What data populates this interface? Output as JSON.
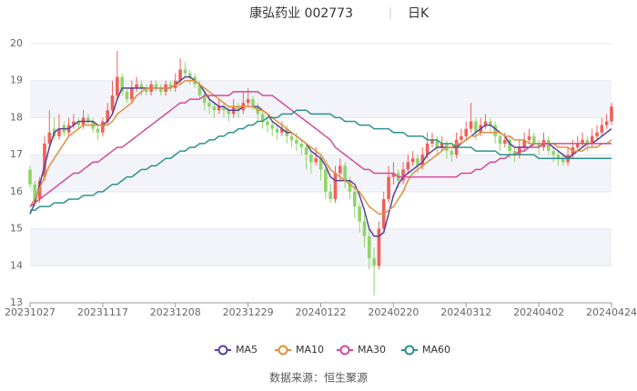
{
  "chart_data": {
    "type": "candlestick",
    "title": "康弘药业 002773",
    "period": "日K",
    "source": "数据来源：恒生聚源",
    "up_color": "#f0605a",
    "down_color": "#8fd46b",
    "grid": true,
    "banded": true,
    "ylim": [
      13,
      20
    ],
    "yticks": [
      13,
      14,
      15,
      16,
      17,
      18,
      19,
      20
    ],
    "categories": [
      "20231027",
      null,
      null,
      null,
      null,
      null,
      null,
      null,
      null,
      null,
      null,
      null,
      null,
      null,
      null,
      "20231117",
      null,
      null,
      null,
      null,
      null,
      null,
      null,
      null,
      null,
      null,
      null,
      null,
      null,
      null,
      "20231208",
      null,
      null,
      null,
      null,
      null,
      null,
      null,
      null,
      null,
      null,
      null,
      null,
      null,
      null,
      "20231229",
      null,
      null,
      null,
      null,
      null,
      null,
      null,
      null,
      null,
      null,
      null,
      null,
      null,
      null,
      "20240122",
      null,
      null,
      null,
      null,
      null,
      null,
      null,
      null,
      null,
      null,
      null,
      null,
      null,
      null,
      "20240220",
      null,
      null,
      null,
      null,
      null,
      null,
      null,
      null,
      null,
      null,
      null,
      null,
      null,
      null,
      "20240312",
      null,
      null,
      null,
      null,
      null,
      null,
      null,
      null,
      null,
      null,
      null,
      null,
      null,
      null,
      "20240402",
      null,
      null,
      null,
      null,
      null,
      null,
      null,
      null,
      null,
      null,
      null,
      null,
      null,
      null,
      "20240424"
    ],
    "ohlc": [
      [
        16.6,
        16.7,
        16.1,
        16.2
      ],
      [
        16.2,
        16.3,
        15.6,
        15.7
      ],
      [
        15.8,
        16.4,
        15.7,
        16.3
      ],
      [
        16.4,
        17.5,
        16.3,
        17.3
      ],
      [
        17.3,
        18.2,
        17.2,
        17.6
      ],
      [
        17.7,
        18.0,
        17.4,
        17.5
      ],
      [
        17.5,
        18.1,
        17.4,
        17.7
      ],
      [
        17.8,
        17.9,
        17.5,
        17.6
      ],
      [
        17.6,
        18.0,
        17.5,
        17.8
      ],
      [
        17.8,
        18.1,
        17.7,
        17.9
      ],
      [
        17.9,
        18.0,
        17.7,
        17.8
      ],
      [
        17.8,
        18.2,
        17.7,
        18.0
      ],
      [
        18.0,
        18.1,
        17.8,
        17.9
      ],
      [
        17.9,
        18.0,
        17.6,
        17.7
      ],
      [
        17.7,
        17.8,
        17.4,
        17.6
      ],
      [
        17.6,
        18.0,
        17.5,
        17.9
      ],
      [
        17.9,
        18.4,
        17.8,
        18.2
      ],
      [
        18.2,
        19.0,
        18.1,
        18.6
      ],
      [
        18.6,
        19.8,
        18.5,
        19.1
      ],
      [
        19.1,
        19.2,
        18.6,
        18.7
      ],
      [
        18.7,
        18.8,
        18.4,
        18.5
      ],
      [
        18.5,
        19.0,
        18.4,
        18.8
      ],
      [
        18.8,
        19.1,
        18.7,
        18.9
      ],
      [
        18.9,
        19.0,
        18.6,
        18.8
      ],
      [
        18.8,
        18.9,
        18.6,
        18.7
      ],
      [
        18.7,
        19.0,
        18.6,
        18.9
      ],
      [
        18.9,
        19.0,
        18.7,
        18.8
      ],
      [
        18.8,
        18.9,
        18.6,
        18.7
      ],
      [
        18.7,
        19.0,
        18.6,
        18.9
      ],
      [
        18.9,
        19.0,
        18.7,
        18.8
      ],
      [
        18.8,
        19.2,
        18.7,
        19.0
      ],
      [
        19.0,
        19.6,
        18.9,
        19.3
      ],
      [
        19.3,
        19.5,
        19.1,
        19.2
      ],
      [
        19.2,
        19.3,
        18.9,
        19.1
      ],
      [
        19.1,
        19.2,
        18.8,
        18.9
      ],
      [
        18.9,
        19.0,
        18.5,
        18.6
      ],
      [
        18.6,
        18.7,
        18.2,
        18.4
      ],
      [
        18.4,
        18.6,
        18.1,
        18.3
      ],
      [
        18.3,
        18.4,
        18.0,
        18.2
      ],
      [
        18.2,
        18.5,
        18.1,
        18.3
      ],
      [
        18.3,
        18.4,
        18.0,
        18.2
      ],
      [
        18.2,
        18.3,
        17.9,
        18.1
      ],
      [
        18.1,
        18.5,
        18.0,
        18.3
      ],
      [
        18.3,
        18.4,
        18.0,
        18.2
      ],
      [
        18.2,
        18.7,
        18.1,
        18.4
      ],
      [
        18.4,
        18.8,
        18.3,
        18.5
      ],
      [
        18.5,
        18.6,
        18.2,
        18.3
      ],
      [
        18.3,
        18.4,
        17.9,
        18.1
      ],
      [
        18.1,
        18.2,
        17.7,
        17.9
      ],
      [
        17.9,
        18.0,
        17.6,
        17.8
      ],
      [
        17.8,
        17.9,
        17.5,
        17.7
      ],
      [
        17.7,
        17.8,
        17.4,
        17.6
      ],
      [
        17.6,
        17.9,
        17.5,
        17.7
      ],
      [
        17.7,
        17.8,
        17.3,
        17.5
      ],
      [
        17.5,
        17.6,
        17.2,
        17.4
      ],
      [
        17.4,
        17.6,
        17.1,
        17.3
      ],
      [
        17.3,
        17.4,
        17.0,
        17.2
      ],
      [
        17.2,
        17.3,
        16.6,
        17.0
      ],
      [
        17.0,
        17.1,
        16.5,
        16.8
      ],
      [
        16.8,
        17.2,
        16.7,
        16.9
      ],
      [
        16.9,
        17.0,
        16.3,
        16.6
      ],
      [
        16.6,
        16.7,
        15.8,
        16.0
      ],
      [
        16.0,
        16.2,
        15.7,
        15.8
      ],
      [
        15.8,
        16.7,
        15.7,
        16.5
      ],
      [
        16.5,
        16.9,
        16.3,
        16.7
      ],
      [
        16.7,
        16.8,
        16.1,
        16.3
      ],
      [
        16.3,
        16.4,
        15.8,
        16.0
      ],
      [
        16.0,
        16.1,
        15.3,
        15.6
      ],
      [
        15.6,
        15.7,
        14.9,
        15.2
      ],
      [
        15.2,
        15.4,
        14.5,
        14.8
      ],
      [
        14.8,
        15.0,
        13.9,
        14.2
      ],
      [
        14.2,
        14.5,
        13.2,
        14.0
      ],
      [
        14.0,
        15.2,
        13.9,
        15.0
      ],
      [
        15.0,
        16.0,
        14.9,
        15.8
      ],
      [
        15.8,
        16.7,
        15.7,
        16.4
      ],
      [
        16.4,
        16.8,
        16.2,
        16.5
      ],
      [
        16.5,
        16.6,
        16.1,
        16.3
      ],
      [
        16.3,
        16.8,
        16.2,
        16.6
      ],
      [
        16.6,
        17.0,
        16.5,
        16.8
      ],
      [
        16.8,
        17.1,
        16.7,
        16.9
      ],
      [
        16.9,
        17.0,
        16.5,
        16.7
      ],
      [
        16.7,
        17.2,
        16.6,
        17.0
      ],
      [
        17.0,
        17.6,
        16.9,
        17.3
      ],
      [
        17.3,
        17.6,
        17.2,
        17.4
      ],
      [
        17.4,
        17.5,
        17.0,
        17.2
      ],
      [
        17.2,
        17.5,
        17.1,
        17.3
      ],
      [
        17.3,
        17.4,
        16.9,
        17.1
      ],
      [
        17.1,
        17.2,
        16.8,
        17.0
      ],
      [
        17.0,
        17.6,
        16.9,
        17.4
      ],
      [
        17.4,
        17.7,
        17.3,
        17.5
      ],
      [
        17.5,
        17.9,
        17.4,
        17.7
      ],
      [
        17.7,
        18.4,
        17.6,
        17.9
      ],
      [
        17.9,
        18.0,
        17.4,
        17.6
      ],
      [
        17.6,
        18.0,
        17.5,
        17.8
      ],
      [
        17.8,
        18.1,
        17.7,
        17.9
      ],
      [
        17.9,
        18.0,
        17.6,
        17.8
      ],
      [
        17.8,
        17.9,
        17.3,
        17.5
      ],
      [
        17.5,
        17.6,
        17.1,
        17.3
      ],
      [
        17.3,
        17.6,
        17.2,
        17.4
      ],
      [
        17.4,
        17.5,
        16.9,
        17.1
      ],
      [
        17.1,
        17.2,
        16.8,
        17.0
      ],
      [
        17.0,
        17.4,
        16.9,
        17.2
      ],
      [
        17.2,
        17.6,
        17.1,
        17.4
      ],
      [
        17.4,
        17.7,
        17.3,
        17.5
      ],
      [
        17.5,
        17.6,
        17.2,
        17.3
      ],
      [
        17.3,
        17.4,
        17.0,
        17.2
      ],
      [
        17.2,
        17.6,
        17.1,
        17.4
      ],
      [
        17.4,
        17.5,
        17.0,
        17.1
      ],
      [
        17.1,
        17.2,
        16.8,
        17.0
      ],
      [
        17.0,
        17.1,
        16.7,
        16.9
      ],
      [
        16.9,
        17.0,
        16.7,
        16.8
      ],
      [
        16.8,
        17.2,
        16.7,
        17.0
      ],
      [
        17.0,
        17.4,
        16.9,
        17.2
      ],
      [
        17.2,
        17.5,
        17.1,
        17.3
      ],
      [
        17.3,
        17.6,
        17.2,
        17.4
      ],
      [
        17.4,
        17.5,
        17.1,
        17.3
      ],
      [
        17.3,
        17.7,
        17.2,
        17.5
      ],
      [
        17.5,
        17.8,
        17.4,
        17.6
      ],
      [
        17.6,
        18.0,
        17.5,
        17.8
      ],
      [
        17.8,
        18.1,
        17.7,
        17.9
      ],
      [
        17.9,
        18.4,
        17.8,
        18.3
      ]
    ],
    "series": [
      {
        "name": "MA5",
        "color": "#5a3f9c",
        "values": [
          15.4,
          15.7,
          16.2,
          16.7,
          17.2,
          17.6,
          17.7,
          17.7,
          17.7,
          17.8,
          17.9,
          17.9,
          17.9,
          17.9,
          17.8,
          17.8,
          17.9,
          18.1,
          18.5,
          18.8,
          18.8,
          18.8,
          18.8,
          18.8,
          18.8,
          18.8,
          18.8,
          18.8,
          18.8,
          18.8,
          18.9,
          19.0,
          19.1,
          19.1,
          19.0,
          18.9,
          18.7,
          18.5,
          18.4,
          18.3,
          18.3,
          18.2,
          18.2,
          18.2,
          18.3,
          18.3,
          18.3,
          18.3,
          18.2,
          18.1,
          17.9,
          17.8,
          17.7,
          17.6,
          17.6,
          17.5,
          17.4,
          17.3,
          17.1,
          17.0,
          16.9,
          16.7,
          16.4,
          16.3,
          16.3,
          16.3,
          16.3,
          16.2,
          15.9,
          15.5,
          15.0,
          14.8,
          14.8,
          14.9,
          15.4,
          15.9,
          16.2,
          16.4,
          16.5,
          16.6,
          16.7,
          16.8,
          17.0,
          17.1,
          17.2,
          17.2,
          17.2,
          17.2,
          17.2,
          17.3,
          17.4,
          17.5,
          17.6,
          17.7,
          17.8,
          17.8,
          17.7,
          17.6,
          17.5,
          17.3,
          17.2,
          17.2,
          17.2,
          17.2,
          17.3,
          17.3,
          17.3,
          17.3,
          17.2,
          17.1,
          17.0,
          16.9,
          17.0,
          17.1,
          17.2,
          17.3,
          17.3,
          17.4,
          17.5,
          17.6,
          17.7
        ]
      },
      {
        "name": "MA10",
        "color": "#e0913a",
        "values": [
          15.6,
          15.8,
          16.1,
          16.4,
          16.7,
          16.9,
          17.1,
          17.3,
          17.5,
          17.6,
          17.7,
          17.8,
          17.8,
          17.8,
          17.8,
          17.8,
          17.8,
          17.9,
          18.1,
          18.2,
          18.3,
          18.4,
          18.6,
          18.7,
          18.8,
          18.8,
          18.8,
          18.8,
          18.8,
          18.8,
          18.9,
          18.9,
          19.0,
          19.0,
          19.0,
          18.9,
          18.8,
          18.7,
          18.6,
          18.5,
          18.4,
          18.3,
          18.3,
          18.3,
          18.3,
          18.3,
          18.3,
          18.2,
          18.2,
          18.1,
          18.0,
          17.9,
          17.8,
          17.7,
          17.6,
          17.5,
          17.4,
          17.3,
          17.2,
          17.1,
          17.0,
          16.8,
          16.6,
          16.5,
          16.4,
          16.3,
          16.2,
          16.1,
          16.0,
          15.8,
          15.6,
          15.5,
          15.4,
          15.4,
          15.5,
          15.6,
          15.8,
          16.0,
          16.3,
          16.5,
          16.6,
          16.7,
          16.8,
          16.9,
          17.0,
          17.1,
          17.2,
          17.2,
          17.3,
          17.3,
          17.4,
          17.5,
          17.5,
          17.6,
          17.6,
          17.6,
          17.6,
          17.6,
          17.5,
          17.5,
          17.4,
          17.4,
          17.4,
          17.3,
          17.3,
          17.3,
          17.3,
          17.3,
          17.3,
          17.2,
          17.2,
          17.2,
          17.1,
          17.1,
          17.1,
          17.2,
          17.2,
          17.2,
          17.3,
          17.3,
          17.4
        ]
      },
      {
        "name": "MA30",
        "color": "#d44a98",
        "values": [
          15.6,
          15.7,
          15.8,
          15.9,
          16.0,
          16.1,
          16.2,
          16.3,
          16.4,
          16.5,
          16.5,
          16.6,
          16.7,
          16.8,
          16.8,
          16.9,
          17.0,
          17.1,
          17.2,
          17.2,
          17.3,
          17.4,
          17.5,
          17.6,
          17.7,
          17.8,
          17.9,
          18.0,
          18.1,
          18.2,
          18.3,
          18.4,
          18.4,
          18.5,
          18.5,
          18.5,
          18.6,
          18.6,
          18.6,
          18.6,
          18.6,
          18.6,
          18.7,
          18.7,
          18.7,
          18.7,
          18.7,
          18.7,
          18.6,
          18.6,
          18.6,
          18.5,
          18.4,
          18.3,
          18.2,
          18.1,
          18.0,
          17.9,
          17.8,
          17.7,
          17.6,
          17.5,
          17.4,
          17.2,
          17.1,
          17.0,
          16.9,
          16.8,
          16.7,
          16.6,
          16.6,
          16.5,
          16.5,
          16.5,
          16.5,
          16.5,
          16.4,
          16.4,
          16.4,
          16.4,
          16.4,
          16.4,
          16.4,
          16.4,
          16.4,
          16.4,
          16.4,
          16.4,
          16.4,
          16.5,
          16.5,
          16.5,
          16.6,
          16.6,
          16.7,
          16.8,
          16.8,
          16.9,
          16.9,
          17.0,
          17.0,
          17.1,
          17.1,
          17.2,
          17.2,
          17.2,
          17.3,
          17.3,
          17.3,
          17.3,
          17.3,
          17.3,
          17.3,
          17.3,
          17.3,
          17.3,
          17.3,
          17.3,
          17.3,
          17.3,
          17.3
        ]
      },
      {
        "name": "MA60",
        "color": "#2b928e",
        "values": [
          15.5,
          15.5,
          15.6,
          15.6,
          15.6,
          15.7,
          15.7,
          15.7,
          15.8,
          15.8,
          15.8,
          15.9,
          15.9,
          15.9,
          16.0,
          16.0,
          16.1,
          16.2,
          16.2,
          16.3,
          16.4,
          16.4,
          16.5,
          16.6,
          16.6,
          16.7,
          16.7,
          16.8,
          16.9,
          16.9,
          17.0,
          17.1,
          17.1,
          17.2,
          17.2,
          17.3,
          17.3,
          17.4,
          17.4,
          17.5,
          17.5,
          17.6,
          17.6,
          17.7,
          17.7,
          17.8,
          17.8,
          17.9,
          17.9,
          18.0,
          18.0,
          18.0,
          18.1,
          18.1,
          18.1,
          18.2,
          18.2,
          18.2,
          18.1,
          18.1,
          18.1,
          18.1,
          18.1,
          18.0,
          18.0,
          17.9,
          17.9,
          17.9,
          17.8,
          17.8,
          17.8,
          17.7,
          17.7,
          17.7,
          17.7,
          17.6,
          17.6,
          17.6,
          17.5,
          17.5,
          17.5,
          17.5,
          17.4,
          17.4,
          17.4,
          17.3,
          17.3,
          17.3,
          17.2,
          17.2,
          17.2,
          17.2,
          17.1,
          17.1,
          17.1,
          17.1,
          17.1,
          17.0,
          17.0,
          17.0,
          17.0,
          17.0,
          17.0,
          17.0,
          17.0,
          16.9,
          16.9,
          16.9,
          16.9,
          16.9,
          16.9,
          16.9,
          16.9,
          16.9,
          16.9,
          16.9,
          16.9,
          16.9,
          16.9,
          16.9,
          16.9
        ]
      }
    ]
  }
}
